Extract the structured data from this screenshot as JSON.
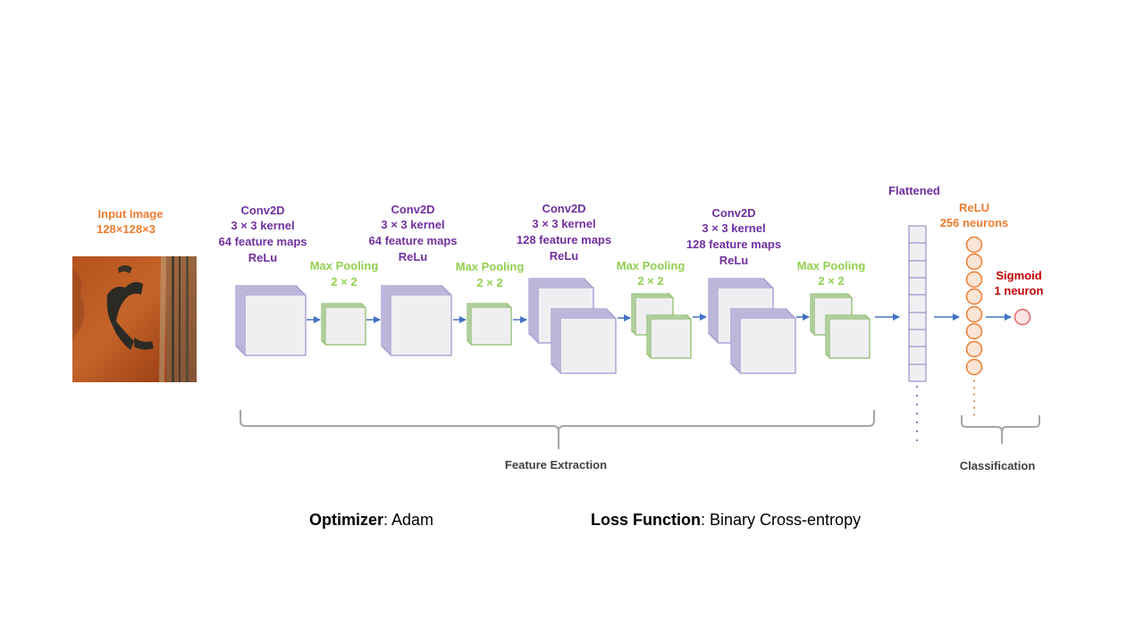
{
  "colors": {
    "conv": "#7030a0",
    "pool": "#92d050",
    "input": "#ed7d31",
    "sigmoid": "#c00000",
    "arrow": "#4472c4",
    "brace": "#a6a6a6"
  },
  "input": {
    "line1": "Input Image",
    "line2": "128×128×3"
  },
  "conv1": {
    "l1": "Conv2D",
    "l2": "3 × 3 kernel",
    "l3": "64 feature maps",
    "l4": "ReLu"
  },
  "pool1": {
    "l1": "Max Pooling",
    "l2": "2 × 2"
  },
  "conv2": {
    "l1": "Conv2D",
    "l2": "3 × 3 kernel",
    "l3": "64 feature maps",
    "l4": "ReLu"
  },
  "pool2": {
    "l1": "Max Pooling",
    "l2": "2 × 2"
  },
  "conv3": {
    "l1": "Conv2D",
    "l2": "3 × 3 kernel",
    "l3": "128  feature maps",
    "l4": "ReLu"
  },
  "pool3": {
    "l1": "Max Pooling",
    "l2": "2 × 2"
  },
  "conv4": {
    "l1": "Conv2D",
    "l2": "3 × 3 kernel",
    "l3": "128  feature maps",
    "l4": "ReLu"
  },
  "pool4": {
    "l1": "Max Pooling",
    "l2": "2 × 2"
  },
  "flattened": "Flattened",
  "dense": {
    "l1": "ReLU",
    "l2": "256  neurons"
  },
  "output": {
    "l1": "Sigmoid",
    "l2": "1 neuron"
  },
  "groups": {
    "features": "Feature Extraction",
    "classification": "Classification"
  },
  "training": {
    "optimizer_label": "Optimizer",
    "optimizer_value": "Adam",
    "loss_label": "Loss Function",
    "loss_value": "Binary Cross-entropy"
  }
}
